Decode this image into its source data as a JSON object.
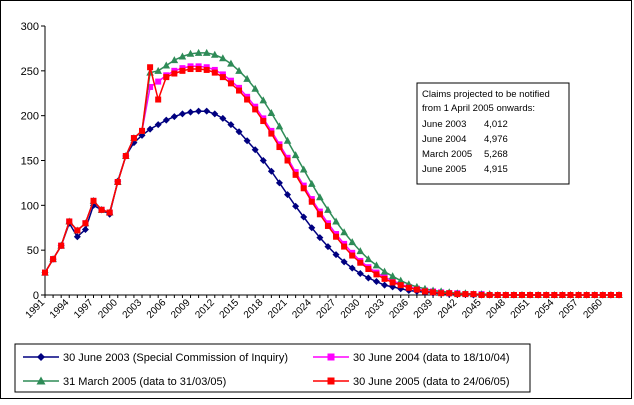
{
  "chart_data": {
    "type": "line",
    "title": "",
    "xlabel": "",
    "ylabel": "",
    "ylim": [
      0,
      300
    ],
    "yticks": [
      0,
      50,
      100,
      150,
      200,
      250,
      300
    ],
    "xlim": [
      1991,
      2062
    ],
    "xticks": [
      1991,
      1994,
      1997,
      2000,
      2003,
      2006,
      2009,
      2012,
      2015,
      2018,
      2021,
      2024,
      2027,
      2030,
      2033,
      2036,
      2039,
      2042,
      2045,
      2048,
      2051,
      2054,
      2057,
      2060
    ],
    "grid": false,
    "legend_position": "bottom",
    "colors": {
      "series1": "#000080",
      "series2": "#ff00ff",
      "series3": "#2e8b57",
      "series4": "#ff0000"
    },
    "series": [
      {
        "name": "30 June 2003 (Special Commission of Inquiry)",
        "marker": "diamond",
        "x": [
          1991,
          1992,
          1993,
          1994,
          1995,
          1996,
          1997,
          1998,
          1999,
          2000,
          2001,
          2002,
          2003,
          2004,
          2005,
          2006,
          2007,
          2008,
          2009,
          2010,
          2011,
          2012,
          2013,
          2014,
          2015,
          2016,
          2017,
          2018,
          2019,
          2020,
          2021,
          2022,
          2023,
          2024,
          2025,
          2026,
          2027,
          2028,
          2029,
          2030,
          2031,
          2032,
          2033,
          2034,
          2035,
          2036,
          2037,
          2038,
          2039,
          2040,
          2041,
          2042,
          2043,
          2044,
          2045,
          2046,
          2047,
          2048,
          2049,
          2050,
          2051,
          2052,
          2053,
          2054,
          2055,
          2056,
          2057,
          2058,
          2059,
          2060,
          2061,
          2062
        ],
        "values": [
          25,
          40,
          55,
          80,
          65,
          73,
          100,
          95,
          90,
          127,
          155,
          170,
          178,
          185,
          190,
          195,
          199,
          202,
          204,
          205,
          205,
          202,
          197,
          190,
          182,
          172,
          162,
          150,
          138,
          125,
          112,
          99,
          87,
          75,
          64,
          54,
          45,
          37,
          30,
          24,
          19,
          15,
          11,
          9,
          7,
          5,
          4,
          3,
          2,
          2,
          1,
          1,
          1,
          0,
          0,
          0,
          0,
          0,
          0,
          0,
          0,
          0,
          0,
          0,
          0,
          0,
          0,
          0,
          0,
          0,
          0,
          0
        ]
      },
      {
        "name": "30 June 2004 (data to 18/10/04)",
        "marker": "square",
        "x": [
          1991,
          1992,
          1993,
          1994,
          1995,
          1996,
          1997,
          1998,
          1999,
          2000,
          2001,
          2002,
          2003,
          2004,
          2005,
          2006,
          2007,
          2008,
          2009,
          2010,
          2011,
          2012,
          2013,
          2014,
          2015,
          2016,
          2017,
          2018,
          2019,
          2020,
          2021,
          2022,
          2023,
          2024,
          2025,
          2026,
          2027,
          2028,
          2029,
          2030,
          2031,
          2032,
          2033,
          2034,
          2035,
          2036,
          2037,
          2038,
          2039,
          2040,
          2041,
          2042,
          2043,
          2044,
          2045,
          2046,
          2047,
          2048,
          2049,
          2050,
          2051,
          2052,
          2053,
          2054,
          2055,
          2056,
          2057,
          2058,
          2059,
          2060,
          2061,
          2062
        ],
        "values": [
          25,
          40,
          55,
          82,
          72,
          80,
          105,
          95,
          92,
          126,
          155,
          175,
          183,
          232,
          238,
          245,
          250,
          253,
          255,
          255,
          254,
          251,
          246,
          239,
          231,
          221,
          210,
          197,
          183,
          168,
          153,
          137,
          122,
          107,
          93,
          80,
          68,
          57,
          47,
          38,
          31,
          25,
          20,
          16,
          12,
          9,
          7,
          5,
          4,
          3,
          2,
          2,
          1,
          1,
          1,
          0,
          0,
          0,
          0,
          0,
          0,
          0,
          0,
          0,
          0,
          0,
          0,
          0,
          0,
          0,
          0,
          0
        ]
      },
      {
        "name": "31 March 2005 (data to 31/03/05)",
        "marker": "triangle",
        "x": [
          1991,
          1992,
          1993,
          1994,
          1995,
          1996,
          1997,
          1998,
          1999,
          2000,
          2001,
          2002,
          2003,
          2004,
          2005,
          2006,
          2007,
          2008,
          2009,
          2010,
          2011,
          2012,
          2013,
          2014,
          2015,
          2016,
          2017,
          2018,
          2019,
          2020,
          2021,
          2022,
          2023,
          2024,
          2025,
          2026,
          2027,
          2028,
          2029,
          2030,
          2031,
          2032,
          2033,
          2034,
          2035,
          2036,
          2037,
          2038,
          2039,
          2040,
          2041,
          2042,
          2043,
          2044,
          2045,
          2046,
          2047,
          2048,
          2049,
          2050,
          2051,
          2052,
          2053,
          2054,
          2055,
          2056,
          2057,
          2058,
          2059,
          2060,
          2061,
          2062
        ],
        "values": [
          25,
          40,
          55,
          82,
          72,
          80,
          105,
          95,
          92,
          126,
          155,
          175,
          183,
          248,
          250,
          256,
          262,
          266,
          269,
          270,
          270,
          268,
          264,
          258,
          250,
          241,
          230,
          217,
          203,
          188,
          172,
          156,
          140,
          124,
          109,
          95,
          82,
          70,
          59,
          49,
          40,
          33,
          26,
          21,
          16,
          12,
          9,
          7,
          5,
          4,
          3,
          2,
          2,
          1,
          1,
          1,
          0,
          0,
          0,
          0,
          0,
          0,
          0,
          0,
          0,
          0,
          0,
          0,
          0,
          0,
          0,
          0
        ]
      },
      {
        "name": "30 June 2005 (data to 24/06/05)",
        "marker": "square",
        "x": [
          1991,
          1992,
          1993,
          1994,
          1995,
          1996,
          1997,
          1998,
          1999,
          2000,
          2001,
          2002,
          2003,
          2004,
          2005,
          2006,
          2007,
          2008,
          2009,
          2010,
          2011,
          2012,
          2013,
          2014,
          2015,
          2016,
          2017,
          2018,
          2019,
          2020,
          2021,
          2022,
          2023,
          2024,
          2025,
          2026,
          2027,
          2028,
          2029,
          2030,
          2031,
          2032,
          2033,
          2034,
          2035,
          2036,
          2037,
          2038,
          2039,
          2040,
          2041,
          2042,
          2043,
          2044,
          2045,
          2046,
          2047,
          2048,
          2049,
          2050,
          2051,
          2052,
          2053,
          2054,
          2055,
          2056,
          2057,
          2058,
          2059,
          2060,
          2061,
          2062
        ],
        "values": [
          25,
          40,
          55,
          82,
          72,
          80,
          105,
          95,
          92,
          126,
          155,
          175,
          183,
          254,
          218,
          243,
          247,
          250,
          252,
          252,
          251,
          248,
          243,
          236,
          228,
          218,
          207,
          194,
          180,
          165,
          150,
          134,
          119,
          104,
          90,
          77,
          65,
          54,
          44,
          36,
          29,
          23,
          18,
          14,
          11,
          8,
          6,
          4,
          3,
          2,
          2,
          1,
          1,
          1,
          0,
          0,
          0,
          0,
          0,
          0,
          0,
          0,
          0,
          0,
          0,
          0,
          0,
          0,
          0,
          0,
          0,
          0
        ]
      }
    ],
    "annotation": {
      "heading_line1": "Claims projected to be notified",
      "heading_line2": "from 1 April 2005 onwards:",
      "rows": [
        {
          "label": "June 2003",
          "value": "4,012"
        },
        {
          "label": "June 2004",
          "value": "4,976"
        },
        {
          "label": "March 2005",
          "value": "5,268"
        },
        {
          "label": "June 2005",
          "value": "4,915"
        }
      ]
    }
  }
}
